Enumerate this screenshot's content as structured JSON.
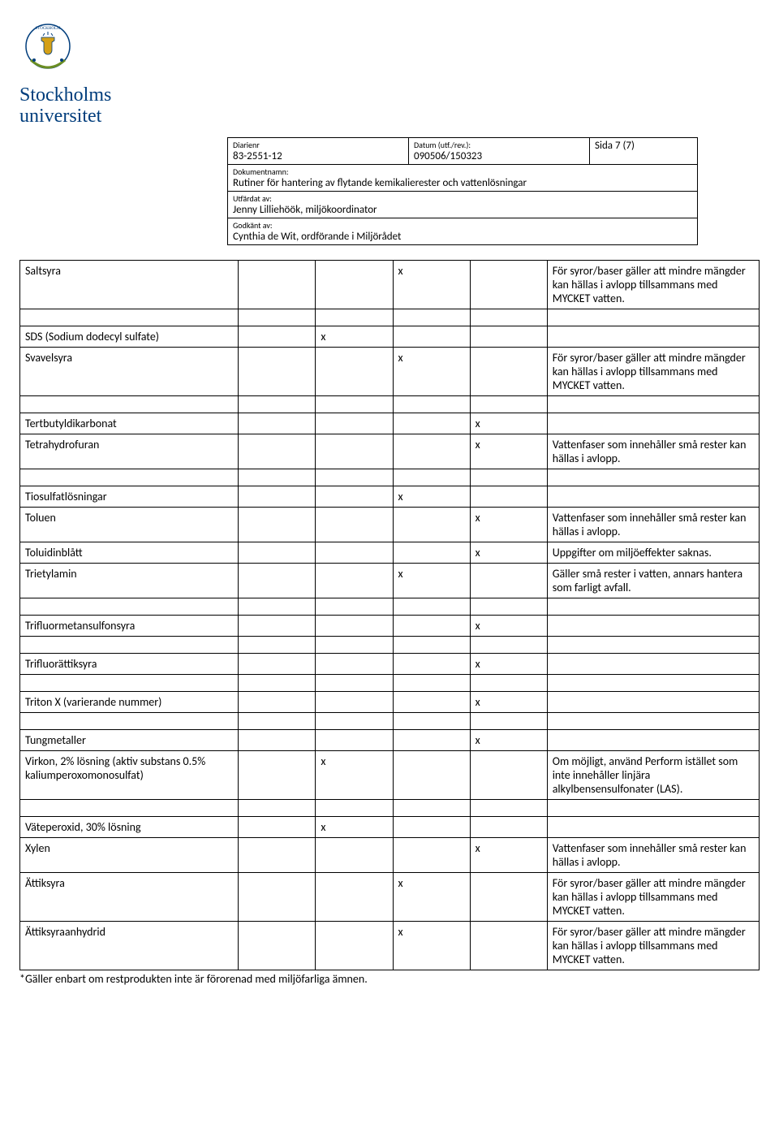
{
  "logo": {
    "line1": "Stockholms",
    "line2": "universitet",
    "brand_color": "#003d7c"
  },
  "meta": {
    "diarienr_label": "Diarienr",
    "diarienr_value": "83-2551-12",
    "datum_label": "Datum (utf./rev.):",
    "datum_value": "090506/150323",
    "sida_value": "Sida 7 (7)",
    "dokumentnamn_label": "Dokumentnamn:",
    "dokumentnamn_value": "Rutiner för hantering av flytande kemikalierester och vattenlösningar",
    "utfardat_label": "Utfärdat av:",
    "utfardat_value": "Jenny Lilliehöök, miljökoordinator",
    "godkant_label": "Godkänt av:",
    "godkant_value": "Cynthia de Wit, ordförande i Miljörådet"
  },
  "rows": [
    {
      "name": "Saltsyra",
      "c1": "",
      "c2": "",
      "c3": "x",
      "c4": "",
      "comment": "För syror/baser gäller att mindre mängder kan hällas i avlopp tillsammans med MYCKET vatten.",
      "spacer": true
    },
    {
      "name": "SDS (Sodium dodecyl sulfate)",
      "c1": "",
      "c2": "x",
      "c3": "",
      "c4": "",
      "comment": "",
      "spacer": false
    },
    {
      "name": "Svavelsyra",
      "c1": "",
      "c2": "",
      "c3": "x",
      "c4": "",
      "comment": "För syror/baser gäller att mindre mängder kan hällas i avlopp tillsammans med MYCKET vatten.",
      "spacer": true
    },
    {
      "name": "Tertbutyldikarbonat",
      "c1": "",
      "c2": "",
      "c3": "",
      "c4": "x",
      "comment": "",
      "spacer": false
    },
    {
      "name": "Tetrahydrofuran",
      "c1": "",
      "c2": "",
      "c3": "",
      "c4": "x",
      "comment": "Vattenfaser som innehåller små rester kan hällas i avlopp.",
      "spacer": true
    },
    {
      "name": "Tiosulfatlösningar",
      "c1": "",
      "c2": "",
      "c3": "x",
      "c4": "",
      "comment": "",
      "spacer": false
    },
    {
      "name": "Toluen",
      "c1": "",
      "c2": "",
      "c3": "",
      "c4": "x",
      "comment": "Vattenfaser som innehåller små rester kan hällas i avlopp.",
      "spacer": false
    },
    {
      "name": "Toluidinblått",
      "c1": "",
      "c2": "",
      "c3": "",
      "c4": "x",
      "comment": "Uppgifter om miljöeffekter saknas.",
      "spacer": false
    },
    {
      "name": "Trietylamin",
      "c1": "",
      "c2": "",
      "c3": "x",
      "c4": "",
      "comment": "Gäller små rester i vatten, annars hantera som farligt avfall.",
      "spacer": true
    },
    {
      "name": "Trifluormetansulfonsyra",
      "c1": "",
      "c2": "",
      "c3": "",
      "c4": "x",
      "comment": "",
      "spacer": true
    },
    {
      "name": "Trifluorättiksyra",
      "c1": "",
      "c2": "",
      "c3": "",
      "c4": "x",
      "comment": "",
      "spacer": true
    },
    {
      "name": "Triton X (varierande nummer)",
      "c1": "",
      "c2": "",
      "c3": "",
      "c4": "x",
      "comment": "",
      "spacer": true
    },
    {
      "name": "Tungmetaller",
      "c1": "",
      "c2": "",
      "c3": "",
      "c4": "x",
      "comment": "",
      "spacer": false
    },
    {
      "name": "Virkon, 2% lösning (aktiv substans 0.5% kaliumperoxomonosulfat)",
      "c1": "",
      "c2": "x",
      "c3": "",
      "c4": "",
      "comment": "Om möjligt, använd Perform istället som inte innehåller linjära alkylbensensulfonater (LAS).",
      "spacer": true
    },
    {
      "name": "Väteperoxid, 30% lösning",
      "c1": "",
      "c2": "x",
      "c3": "",
      "c4": "",
      "comment": "",
      "spacer": false
    },
    {
      "name": "Xylen",
      "c1": "",
      "c2": "",
      "c3": "",
      "c4": "x",
      "comment": "Vattenfaser som innehåller små rester kan hällas i avlopp.",
      "spacer": false
    },
    {
      "name": "Ättiksyra",
      "c1": "",
      "c2": "",
      "c3": "x",
      "c4": "",
      "comment": "För syror/baser gäller att mindre mängder kan hällas i avlopp tillsammans med MYCKET vatten.",
      "spacer": false
    },
    {
      "name": "Ättiksyraanhydrid",
      "c1": "",
      "c2": "",
      "c3": "x",
      "c4": "",
      "comment": "För syror/baser gäller att mindre mängder kan hällas i avlopp tillsammans med MYCKET vatten.",
      "spacer": false
    }
  ],
  "footnote": "*Gäller enbart om restprodukten inte är förorenad med miljöfarliga ämnen."
}
